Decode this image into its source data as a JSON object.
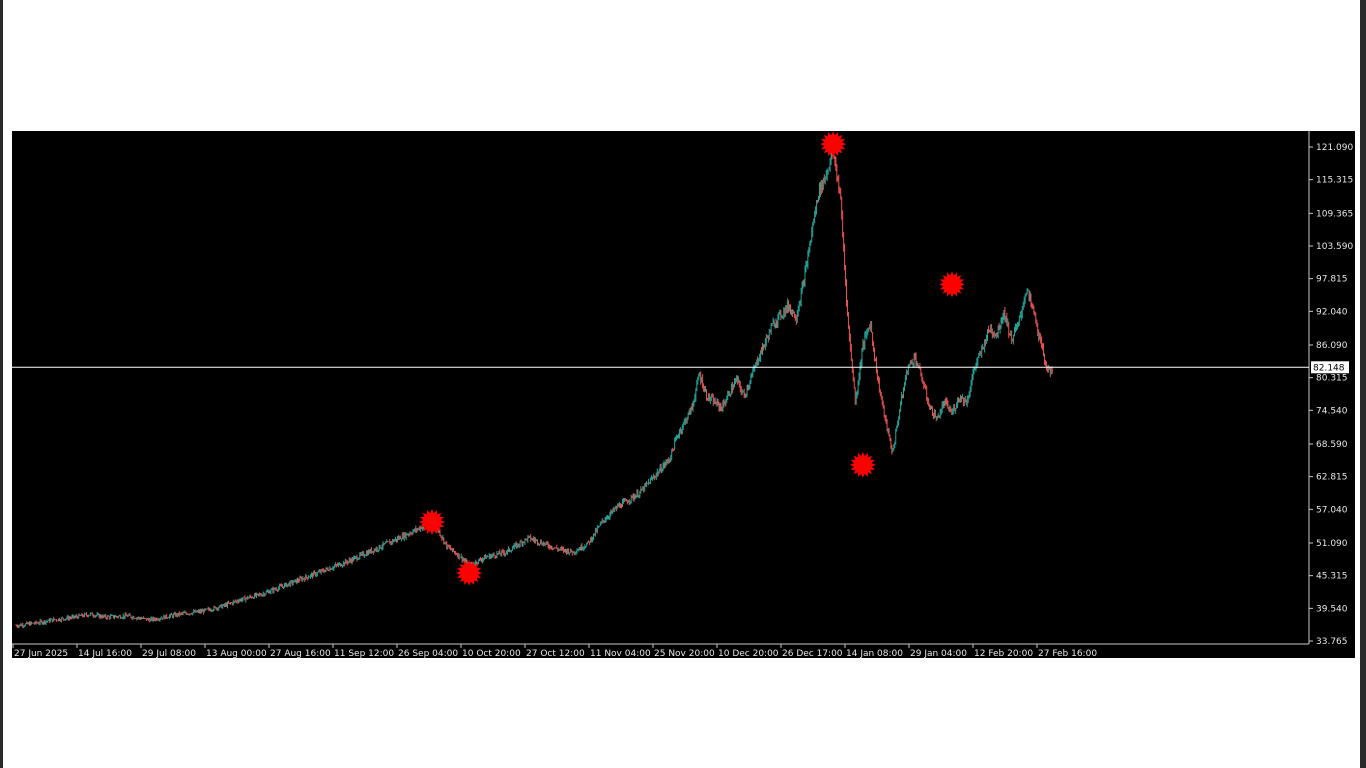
{
  "chart_data": {
    "type": "candlestick",
    "y_ticks": [
      "121.090",
      "115.315",
      "109.365",
      "103.590",
      "97.815",
      "92.040",
      "86.090",
      "80.315",
      "74.540",
      "68.590",
      "62.815",
      "57.040",
      "51.090",
      "45.315",
      "39.540",
      "33.765"
    ],
    "ylim": [
      33.765,
      121.09
    ],
    "x_ticks": [
      "27 Jun 2025",
      "14 Jul 16:00",
      "29 Jul 08:00",
      "13 Aug 00:00",
      "27 Aug 16:00",
      "11 Sep 12:00",
      "26 Sep 04:00",
      "10 Oct 20:00",
      "27 Oct 12:00",
      "11 Nov 04:00",
      "25 Nov 20:00",
      "10 Dec 20:00",
      "26 Dec 17:00",
      "14 Jan 08:00",
      "29 Jan 04:00",
      "12 Feb 20:00",
      "27 Feb 16:00"
    ],
    "current_price": 82.148,
    "current_price_label": "82.148",
    "price_path": [
      [
        0,
        36.5
      ],
      [
        3,
        37.0
      ],
      [
        5,
        37.5
      ],
      [
        8,
        38.0
      ],
      [
        10,
        38.5
      ],
      [
        12,
        38.0
      ],
      [
        15,
        38.2
      ],
      [
        18,
        37.5
      ],
      [
        20,
        38.0
      ],
      [
        22,
        38.5
      ],
      [
        25,
        39.0
      ],
      [
        28,
        40.0
      ],
      [
        30,
        41.0
      ],
      [
        33,
        42.0
      ],
      [
        36,
        43.5
      ],
      [
        40,
        45.5
      ],
      [
        45,
        48.0
      ],
      [
        50,
        51.0
      ],
      [
        54,
        53.5
      ],
      [
        56,
        55.0
      ],
      [
        57,
        53.0
      ],
      [
        58,
        50.5
      ],
      [
        60,
        48.5
      ],
      [
        61,
        47.0
      ],
      [
        63,
        48.5
      ],
      [
        66,
        49.5
      ],
      [
        69,
        52.0
      ],
      [
        71,
        51.0
      ],
      [
        73,
        50.0
      ],
      [
        75,
        49.5
      ],
      [
        77,
        51.0
      ],
      [
        79,
        55.0
      ],
      [
        81,
        57.5
      ],
      [
        84,
        60.0
      ],
      [
        86,
        63.0
      ],
      [
        88,
        66.0
      ],
      [
        89,
        70.0
      ],
      [
        91,
        75.0
      ],
      [
        92,
        81.0
      ],
      [
        93,
        77.0
      ],
      [
        95,
        75.0
      ],
      [
        97,
        80.0
      ],
      [
        98,
        77.0
      ],
      [
        100,
        84.0
      ],
      [
        102,
        90.0
      ],
      [
        104,
        93.0
      ],
      [
        105,
        91.0
      ],
      [
        106,
        97.0
      ],
      [
        107,
        105.0
      ],
      [
        108,
        113.0
      ],
      [
        109,
        116.0
      ],
      [
        110,
        120.5
      ],
      [
        111,
        112.0
      ],
      [
        112,
        90.0
      ],
      [
        113,
        76.0
      ],
      [
        114,
        86.0
      ],
      [
        115,
        90.0
      ],
      [
        116,
        80.0
      ],
      [
        117,
        73.0
      ],
      [
        118,
        67.0
      ],
      [
        119,
        75.0
      ],
      [
        120,
        82.0
      ],
      [
        121,
        84.0
      ],
      [
        122,
        80.0
      ],
      [
        123,
        75.0
      ],
      [
        124,
        73.0
      ],
      [
        125,
        76.0
      ],
      [
        126,
        74.0
      ],
      [
        127,
        77.0
      ],
      [
        128,
        76.0
      ],
      [
        129,
        82.0
      ],
      [
        130,
        85.0
      ],
      [
        131,
        89.0
      ],
      [
        132,
        88.0
      ],
      [
        133,
        92.0
      ],
      [
        134,
        87.0
      ],
      [
        135,
        90.0
      ],
      [
        136,
        96.0
      ],
      [
        137,
        92.0
      ],
      [
        138,
        86.0
      ],
      [
        139,
        81.0
      ],
      [
        139.5,
        82.148
      ]
    ],
    "x_index_max": 140,
    "markers": [
      {
        "x": 56,
        "y": 54.8
      },
      {
        "x": 61,
        "y": 45.8
      },
      {
        "x": 110,
        "y": 121.6
      },
      {
        "x": 114,
        "y": 64.9
      },
      {
        "x": 126,
        "y": 96.8
      }
    ],
    "colors": {
      "background": "#000000",
      "up_candle": "#26a69a",
      "down_candle": "#ef5350",
      "price_line": "#ffffff",
      "marker": "#ff0000",
      "axis": "#c8c8c8"
    }
  }
}
